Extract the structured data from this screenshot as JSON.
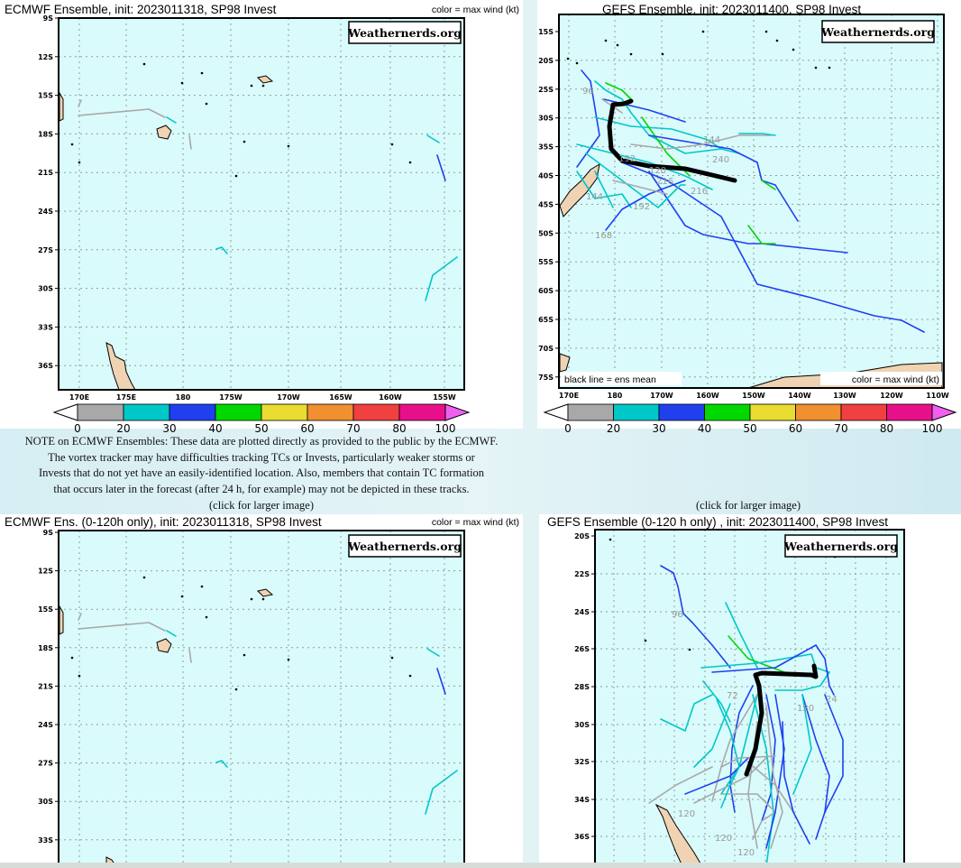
{
  "panels": {
    "ecmwf_full": {
      "title": "ECMWF Ensemble, init: 2023011318, SP98 Invest",
      "legend_note": "color = max wind (kt)",
      "watermark": "Weathernerds.org",
      "lat_labels": [
        "9S",
        "12S",
        "15S",
        "18S",
        "21S",
        "24S",
        "27S",
        "30S",
        "33S",
        "36S"
      ],
      "lon_labels": [
        "170E",
        "175E",
        "180",
        "175W",
        "170W",
        "165W",
        "160W",
        "155W"
      ]
    },
    "gefs_full": {
      "title": "GEFS Ensemble, init: 2023011400, SP98 Invest",
      "mean_note": "black line = ens mean",
      "legend_note": "color = max wind (kt)",
      "watermark": "Weathernerds.org",
      "lat_labels": [
        "15S",
        "20S",
        "25S",
        "30S",
        "35S",
        "40S",
        "45S",
        "50S",
        "55S",
        "60S",
        "65S",
        "70S",
        "75S"
      ],
      "lon_labels": [
        "170E",
        "180",
        "170W",
        "160W",
        "150W",
        "140W",
        "130W",
        "120W",
        "110W"
      ],
      "track_labels": [
        "96",
        "144",
        "192",
        "216",
        "240",
        "216",
        "144",
        "192",
        "168",
        "120"
      ]
    },
    "ecmwf_120": {
      "title": "ECMWF Ens. (0-120h only), init: 2023011318, SP98 Invest",
      "legend_note": "color = max wind (kt)",
      "watermark": "Weathernerds.org",
      "lat_labels": [
        "9S",
        "12S",
        "15S",
        "18S",
        "21S",
        "24S",
        "27S",
        "30S",
        "33S"
      ]
    },
    "gefs_120": {
      "title": "GEFS Ensemble (0-120 h only) , init: 2023011400, SP98 Invest",
      "watermark": "Weathernerds.org",
      "lat_labels": [
        "20S",
        "22S",
        "24S",
        "26S",
        "28S",
        "30S",
        "32S",
        "34S",
        "36S"
      ],
      "track_labels": [
        "96",
        "72",
        "120",
        "24",
        "120",
        "120",
        "120"
      ]
    }
  },
  "colorbar": {
    "labels": [
      "0",
      "20",
      "30",
      "40",
      "50",
      "60",
      "70",
      "80",
      "100"
    ],
    "colors": [
      "#a8a8a8",
      "#00c8c8",
      "#2040f0",
      "#00d800",
      "#e8dc30",
      "#f09030",
      "#f04040",
      "#e8108a"
    ],
    "under_color": "#ffffff",
    "over_color": "#f060f0"
  },
  "colors": {
    "ocean": "#d9fbfc",
    "land": "#efd3b3",
    "mean_track": "#000000"
  },
  "note": {
    "lines": [
      "NOTE on ECMWF Ensembles: These data are plotted directly as provided to the public by the ECMWF.",
      "The vortex tracker may have difficulties tracking TCs or Invests, particularly weaker storms or",
      "Invests that do not yet have an easily-identified location. Also, members that contain TC formation",
      "that occurs later in the forecast (after 24 h, for example) may not be depicted in these tracks."
    ]
  },
  "click_label": "(click for larger image)"
}
